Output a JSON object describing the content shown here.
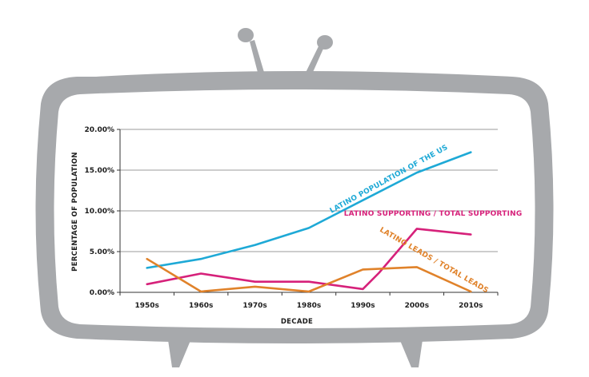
{
  "chart_data": {
    "type": "line",
    "title": "",
    "xlabel": "DECADE",
    "ylabel": "PERCENTAGE OF POPULATION",
    "categories": [
      "1950s",
      "1960s",
      "1970s",
      "1980s",
      "1990s",
      "2000s",
      "2010s"
    ],
    "y_ticks": [
      "0.00%",
      "5.00%",
      "10.00%",
      "15.00%",
      "20.00%"
    ],
    "ylim": [
      0,
      20
    ],
    "grid": true,
    "legend": "none",
    "series": [
      {
        "name": "LATINO POPULATION OF THE US",
        "color": "#1ea9d6",
        "x": [
          1950,
          1960,
          1970,
          1980,
          1990,
          2000,
          2010
        ],
        "values": [
          3.0,
          4.1,
          5.8,
          7.9,
          11.3,
          14.7,
          17.2
        ]
      },
      {
        "name": "LATINO SUPPORTING / TOTAL SUPPORTING",
        "color": "#d6217a",
        "x": [
          1950,
          1960,
          1970,
          1980,
          1990,
          1993,
          2000,
          2010
        ],
        "values": [
          1.0,
          2.3,
          1.3,
          1.3,
          0.4,
          2.4,
          7.8,
          7.1
        ]
      },
      {
        "name": "LATINO LEADS / TOTAL LEADS",
        "color": "#e0822a",
        "x": [
          1950,
          1960,
          1970,
          1980,
          1990,
          2000,
          2010
        ],
        "values": [
          4.1,
          0.1,
          0.7,
          0.1,
          2.8,
          3.1,
          0.1
        ]
      }
    ]
  },
  "tv": {
    "body_color": "#a7a9ac",
    "screen_color": "#ffffff"
  }
}
